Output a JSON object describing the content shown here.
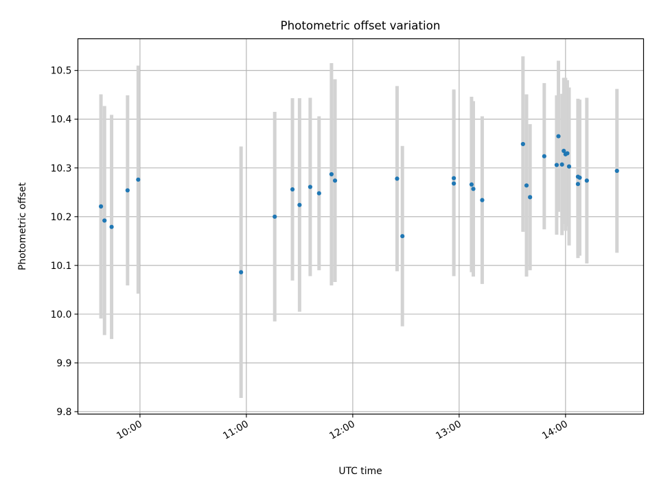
{
  "chart_data": {
    "type": "scatter",
    "title": "Photometric offset variation",
    "xlabel": "UTC time",
    "ylabel": "Photometric offset",
    "xlim": [
      "09:25",
      "14:44"
    ],
    "ylim": [
      9.795,
      10.565
    ],
    "x_ticks": [
      "10:00",
      "11:00",
      "12:00",
      "13:00",
      "14:00"
    ],
    "y_ticks": [
      9.8,
      9.9,
      10.0,
      10.1,
      10.2,
      10.3,
      10.4,
      10.5
    ],
    "grid": true,
    "colors": {
      "marker": "#1f77b4",
      "errorbar": "#d3d3d3",
      "grid": "#b0b0b0"
    },
    "points": [
      {
        "t": "09:38",
        "y": 10.221,
        "err": 0.23
      },
      {
        "t": "09:40",
        "y": 10.192,
        "err": 0.235
      },
      {
        "t": "09:44",
        "y": 10.179,
        "err": 0.23
      },
      {
        "t": "09:53",
        "y": 10.254,
        "err": 0.195
      },
      {
        "t": "09:59",
        "y": 10.276,
        "err": 0.234
      },
      {
        "t": "10:57",
        "y": 10.086,
        "err": 0.258
      },
      {
        "t": "11:16",
        "y": 10.2,
        "err": 0.215
      },
      {
        "t": "11:26",
        "y": 10.256,
        "err": 0.187
      },
      {
        "t": "11:30",
        "y": 10.224,
        "err": 0.219
      },
      {
        "t": "11:36",
        "y": 10.261,
        "err": 0.183
      },
      {
        "t": "11:41",
        "y": 10.248,
        "err": 0.158
      },
      {
        "t": "11:48",
        "y": 10.287,
        "err": 0.228
      },
      {
        "t": "11:50",
        "y": 10.274,
        "err": 0.208
      },
      {
        "t": "12:25",
        "y": 10.278,
        "err": 0.19
      },
      {
        "t": "12:28",
        "y": 10.16,
        "err": 0.185
      },
      {
        "t": "12:57",
        "y": 10.279,
        "err": 0.182
      },
      {
        "t": "12:57",
        "y": 10.268,
        "err": 0.19
      },
      {
        "t": "13:07",
        "y": 10.266,
        "err": 0.18
      },
      {
        "t": "13:08",
        "y": 10.257,
        "err": 0.18
      },
      {
        "t": "13:13",
        "y": 10.234,
        "err": 0.172
      },
      {
        "t": "13:36",
        "y": 10.349,
        "err": 0.18
      },
      {
        "t": "13:38",
        "y": 10.264,
        "err": 0.187
      },
      {
        "t": "13:40",
        "y": 10.24,
        "err": 0.15
      },
      {
        "t": "13:48",
        "y": 10.324,
        "err": 0.15
      },
      {
        "t": "13:55",
        "y": 10.306,
        "err": 0.143
      },
      {
        "t": "13:56",
        "y": 10.365,
        "err": 0.155
      },
      {
        "t": "13:58",
        "y": 10.307,
        "err": 0.145
      },
      {
        "t": "13:59",
        "y": 10.335,
        "err": 0.15
      },
      {
        "t": "14:00",
        "y": 10.328,
        "err": 0.157
      },
      {
        "t": "14:01",
        "y": 10.33,
        "err": 0.15
      },
      {
        "t": "14:02",
        "y": 10.303,
        "err": 0.162
      },
      {
        "t": "14:07",
        "y": 10.267,
        "err": 0.152
      },
      {
        "t": "14:07",
        "y": 10.282,
        "err": 0.16
      },
      {
        "t": "14:08",
        "y": 10.28,
        "err": 0.16
      },
      {
        "t": "14:12",
        "y": 10.274,
        "err": 0.17
      },
      {
        "t": "14:29",
        "y": 10.294,
        "err": 0.168
      }
    ]
  }
}
